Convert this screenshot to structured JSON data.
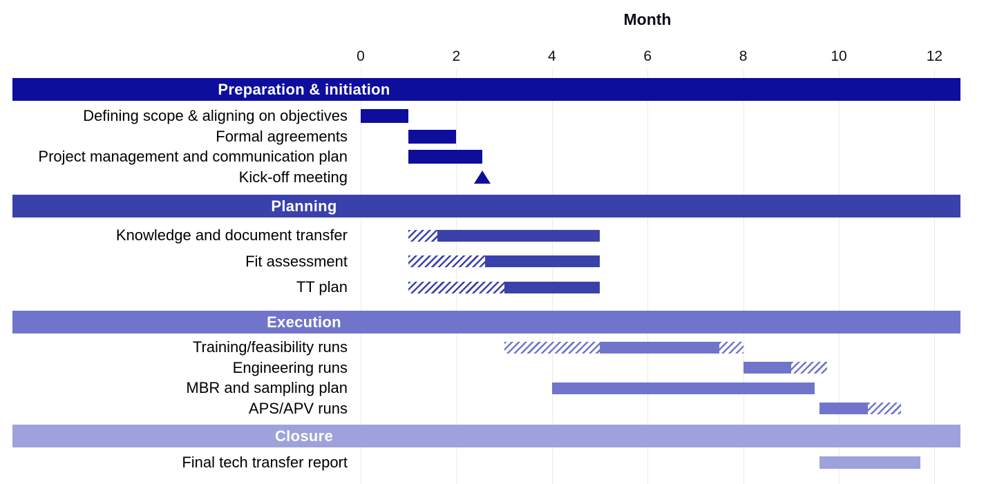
{
  "chart_data": {
    "type": "gantt",
    "xlabel": "Month",
    "xlim": [
      0,
      12.6
    ],
    "xticks": [
      0,
      2,
      4,
      6,
      8,
      10,
      12
    ],
    "grid": "vertical-light",
    "colors": {
      "preparation": "#0e0e9c",
      "planning": "#3a41ab",
      "execution": "#7075cb",
      "closure": "#9ea2db",
      "hatch_background": "#ffffff"
    },
    "phases": [
      {
        "name": "Preparation & initiation",
        "color": "#0e0e9c",
        "tasks": [
          {
            "label": "Defining scope & aligning on objectives",
            "segments": [
              {
                "type": "solid",
                "start": 0,
                "end": 1
              }
            ]
          },
          {
            "label": "Formal agreements",
            "segments": [
              {
                "type": "solid",
                "start": 1,
                "end": 2
              }
            ]
          },
          {
            "label": "Project management and communication plan",
            "segments": [
              {
                "type": "solid",
                "start": 1,
                "end": 2.55
              }
            ]
          },
          {
            "label": "Kick-off meeting",
            "segments": [
              {
                "type": "milestone",
                "start": 2.55,
                "end": 2.55
              }
            ]
          }
        ]
      },
      {
        "name": "Planning",
        "color": "#3a41ab",
        "tasks": [
          {
            "label": "Knowledge and document transfer",
            "segments": [
              {
                "type": "hatched",
                "start": 1,
                "end": 1.6
              },
              {
                "type": "solid",
                "start": 1.6,
                "end": 5
              }
            ]
          },
          {
            "label": "Fit assessment",
            "segments": [
              {
                "type": "hatched",
                "start": 1,
                "end": 2.6
              },
              {
                "type": "solid",
                "start": 2.6,
                "end": 5
              }
            ]
          },
          {
            "label": "TT plan",
            "segments": [
              {
                "type": "hatched",
                "start": 1,
                "end": 3
              },
              {
                "type": "solid",
                "start": 3,
                "end": 5
              }
            ]
          }
        ]
      },
      {
        "name": "Execution",
        "color": "#7075cb",
        "tasks": [
          {
            "label": "Training/feasibility runs",
            "segments": [
              {
                "type": "hatched",
                "start": 3,
                "end": 5
              },
              {
                "type": "solid",
                "start": 5,
                "end": 7.5
              },
              {
                "type": "hatched",
                "start": 7.5,
                "end": 8
              }
            ]
          },
          {
            "label": "Engineering runs",
            "segments": [
              {
                "type": "solid",
                "start": 8,
                "end": 9
              },
              {
                "type": "hatched",
                "start": 9,
                "end": 9.75
              }
            ]
          },
          {
            "label": "MBR and sampling plan",
            "segments": [
              {
                "type": "solid",
                "start": 4,
                "end": 9.5
              }
            ]
          },
          {
            "label": "APS/APV runs",
            "segments": [
              {
                "type": "solid",
                "start": 9.6,
                "end": 10.6
              },
              {
                "type": "hatched",
                "start": 10.6,
                "end": 11.3
              }
            ]
          }
        ]
      },
      {
        "name": "Closure",
        "color": "#9ea2db",
        "tasks": [
          {
            "label": "Final tech transfer report",
            "segments": [
              {
                "type": "solid",
                "start": 9.6,
                "end": 11.7
              }
            ]
          }
        ]
      }
    ]
  }
}
